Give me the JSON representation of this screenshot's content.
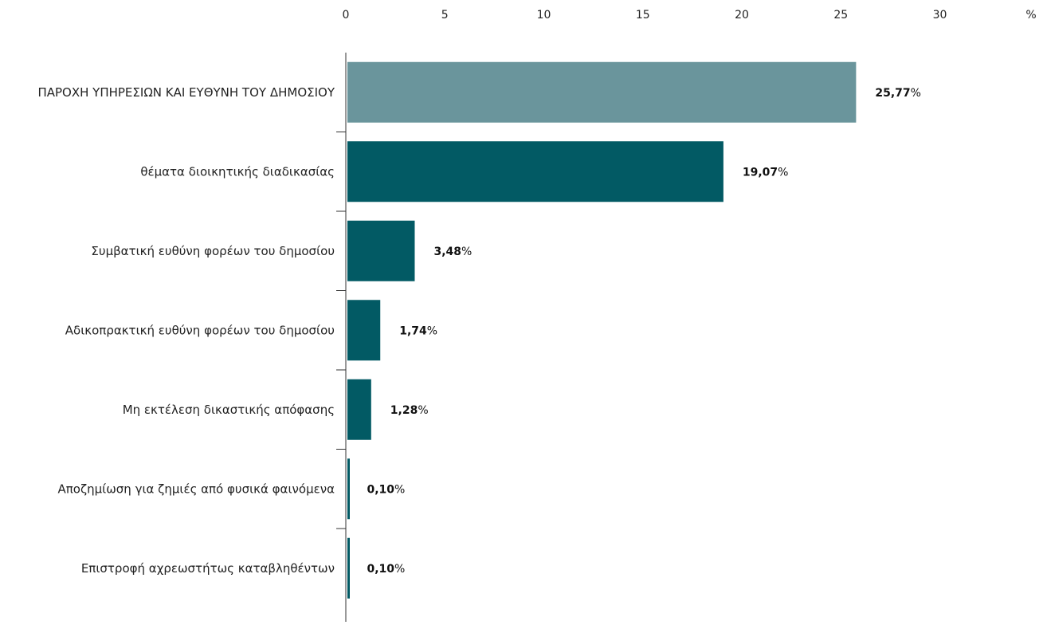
{
  "chart_data": {
    "type": "bar",
    "orientation": "horizontal",
    "categories": [
      "ΠΑΡΟΧΗ ΥΠΗΡΕΣΙΩΝ ΚΑΙ ΕΥΘΥΝΗ ΤΟΥ ΔΗΜΟΣΙΟΥ",
      "θέματα διοικητικής διαδικασίας",
      "Συμβατική ευθύνη φορέων του δημοσίου",
      "Αδικοπρακτική ευθύνη φορέων του δημοσίου",
      "Μη εκτέλεση δικαστικής απόφασης",
      "Αποζημίωση για ζημιές από φυσικά φαινόμενα",
      "Επιστροφή αχρεωστήτως καταβληθέντων"
    ],
    "values": [
      25.77,
      19.07,
      3.48,
      1.74,
      1.28,
      0.1,
      0.1
    ],
    "value_labels": [
      "25,77",
      "19,07",
      "3,48",
      "1,74",
      "1,28",
      "0,10",
      "0,10"
    ],
    "value_suffix": "%",
    "bar_colors": [
      "#6a959c",
      "#025a64",
      "#025a64",
      "#025a64",
      "#025a64",
      "#025a64",
      "#025a64"
    ],
    "x_ticks": [
      "0",
      "5",
      "10",
      "15",
      "20",
      "25",
      "30"
    ],
    "x_tick_values": [
      0,
      5,
      10,
      15,
      20,
      25,
      30
    ],
    "xlabel": "%",
    "xlim": [
      0,
      30
    ],
    "axis_position": "top",
    "grid": false,
    "legend": "none",
    "title": ""
  }
}
